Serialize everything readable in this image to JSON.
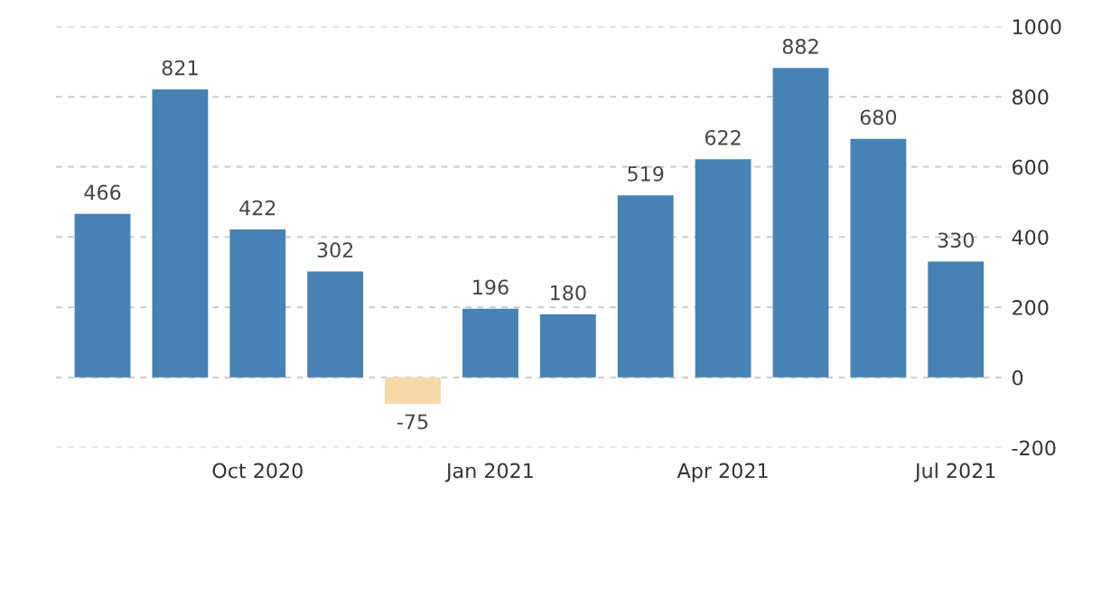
{
  "chart_data": {
    "type": "bar",
    "categories": [
      null,
      null,
      "Oct 2020",
      null,
      null,
      "Jan 2021",
      null,
      null,
      "Apr 2021",
      null,
      null,
      "Jul 2021"
    ],
    "values": [
      466,
      821,
      422,
      302,
      -75,
      196,
      180,
      519,
      622,
      882,
      680,
      330
    ],
    "colors": [
      "#4682b4",
      "#4682b4",
      "#4682b4",
      "#4682b4",
      "#f5d9a8",
      "#4682b4",
      "#4682b4",
      "#4682b4",
      "#4682b4",
      "#4682b4",
      "#4682b4",
      "#4682b4"
    ],
    "ylim": [
      -200,
      1000
    ],
    "yticks": [
      -200,
      0,
      200,
      400,
      600,
      800,
      1000
    ],
    "grid": "y",
    "data_labels": true
  }
}
